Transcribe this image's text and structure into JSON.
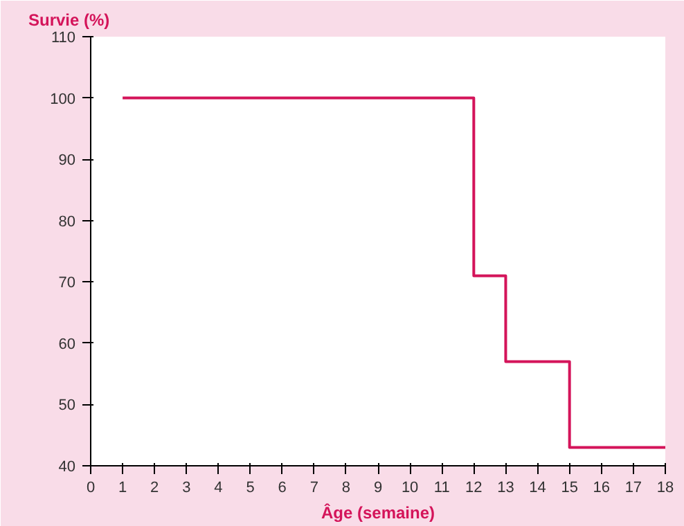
{
  "chart_data": {
    "type": "step",
    "ylabel": "Survie (%)",
    "xlabel": "Âge (semaine)",
    "x": [
      1,
      12,
      13,
      15,
      18
    ],
    "series": [
      {
        "color": "#d4145a",
        "values": [
          100,
          71,
          57,
          43,
          43
        ]
      }
    ],
    "xlim": [
      0,
      18
    ],
    "ylim": [
      40,
      110
    ],
    "xticks": [
      0,
      1,
      2,
      3,
      4,
      5,
      6,
      7,
      8,
      9,
      10,
      11,
      12,
      13,
      14,
      15,
      16,
      17,
      18
    ],
    "yticks": [
      40,
      50,
      60,
      70,
      80,
      90,
      100,
      110
    ],
    "grid": false
  }
}
